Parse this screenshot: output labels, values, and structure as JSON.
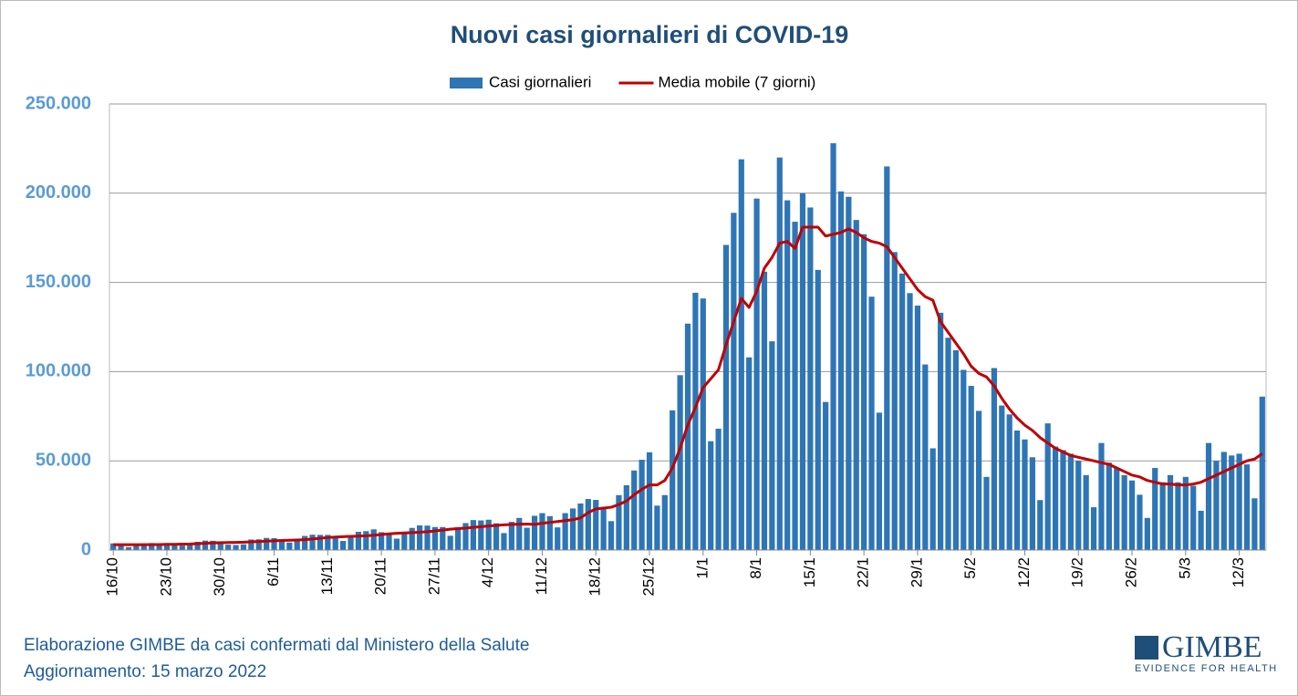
{
  "chart_data": {
    "type": "bar_line",
    "title": "Nuovi casi giornalieri di COVID-19",
    "categories": [
      "16/10",
      null,
      null,
      null,
      null,
      null,
      null,
      "23/10",
      null,
      null,
      null,
      null,
      null,
      null,
      "30/10",
      null,
      null,
      null,
      null,
      null,
      null,
      "6/11",
      null,
      null,
      null,
      null,
      null,
      null,
      "13/11",
      null,
      null,
      null,
      null,
      null,
      null,
      "20/11",
      null,
      null,
      null,
      null,
      null,
      null,
      "27/11",
      null,
      null,
      null,
      null,
      null,
      null,
      "4/12",
      null,
      null,
      null,
      null,
      null,
      null,
      "11/12",
      null,
      null,
      null,
      null,
      null,
      null,
      "18/12",
      null,
      null,
      null,
      null,
      null,
      null,
      "25/12",
      null,
      null,
      null,
      null,
      null,
      null,
      "1/1",
      null,
      null,
      null,
      null,
      null,
      null,
      "8/1",
      null,
      null,
      null,
      null,
      null,
      null,
      "15/1",
      null,
      null,
      null,
      null,
      null,
      null,
      "22/1",
      null,
      null,
      null,
      null,
      null,
      null,
      "29/1",
      null,
      null,
      null,
      null,
      null,
      null,
      "5/2",
      null,
      null,
      null,
      null,
      null,
      null,
      "12/2",
      null,
      null,
      null,
      null,
      null,
      null,
      "19/2",
      null,
      null,
      null,
      null,
      null,
      null,
      "26/2",
      null,
      null,
      null,
      null,
      null,
      null,
      "5/3",
      null,
      null,
      null,
      null,
      null,
      null,
      "12/3",
      null,
      null,
      null
    ],
    "series": [
      {
        "name": "Casi giornalieri",
        "type": "bar",
        "color": "#2e75b6",
        "values": [
          3700,
          3000,
          1600,
          2700,
          3700,
          3900,
          3800,
          3700,
          3200,
          2500,
          3000,
          4600,
          5300,
          5200,
          4900,
          3000,
          2800,
          3200,
          5900,
          6000,
          6800,
          6700,
          5800,
          4200,
          6400,
          7900,
          8600,
          8500,
          8500,
          7600,
          5100,
          7700,
          10200,
          10600,
          11600,
          10000,
          8500,
          6400,
          9700,
          12400,
          13800,
          13700,
          12900,
          12900,
          8000,
          12800,
          15100,
          16800,
          16600,
          17000,
          15000,
          9500,
          15800,
          18000,
          12500,
          19200,
          20700,
          19000,
          12700,
          20700,
          23300,
          26100,
          28600,
          28100,
          24200,
          16200,
          30800,
          36300,
          44600,
          50600,
          54800,
          24900,
          30800,
          78300,
          98000,
          126900,
          144200,
          141000,
          61000,
          68000,
          171000,
          189000,
          219000,
          108000,
          197000,
          156000,
          117000,
          220000,
          196000,
          184000,
          200000,
          192000,
          157000,
          83000,
          228000,
          201000,
          198000,
          185000,
          177000,
          142000,
          77000,
          215000,
          167000,
          155000,
          144000,
          137000,
          104000,
          57000,
          133000,
          119000,
          112000,
          101000,
          92000,
          78000,
          41000,
          102000,
          81000,
          76000,
          67000,
          62000,
          52000,
          28000,
          71000,
          58000,
          56000,
          54000,
          50000,
          42000,
          24000,
          60000,
          49000,
          46000,
          42000,
          39000,
          31000,
          18000,
          46000,
          38000,
          42000,
          38000,
          41000,
          36000,
          22000,
          60000,
          50000,
          55000,
          53000,
          54000,
          48000,
          29000,
          86000
        ]
      },
      {
        "name": "Media mobile (7 giorni)",
        "type": "line",
        "color": "#c00000",
        "values": [
          3000,
          3000,
          3000,
          3000,
          3000,
          3100,
          3100,
          3200,
          3200,
          3300,
          3400,
          3600,
          3800,
          4000,
          4100,
          4200,
          4300,
          4400,
          4600,
          4800,
          5000,
          5200,
          5400,
          5500,
          5600,
          5800,
          6200,
          6600,
          7000,
          7300,
          7500,
          7700,
          7800,
          8000,
          8300,
          8700,
          9100,
          9400,
          9600,
          9800,
          10000,
          10300,
          10700,
          11200,
          11700,
          12000,
          12300,
          12700,
          13100,
          13500,
          13800,
          14100,
          14300,
          14500,
          14600,
          14400,
          15000,
          15500,
          16000,
          16500,
          17000,
          18000,
          21000,
          23000,
          23500,
          24000,
          25500,
          27500,
          31000,
          34000,
          36500,
          36500,
          39000,
          46000,
          57000,
          70000,
          80000,
          91000,
          96000,
          101000,
          115000,
          128000,
          141000,
          136000,
          145000,
          158000,
          164000,
          172000,
          173000,
          169000,
          181000,
          181000,
          181000,
          176000,
          177000,
          178000,
          180000,
          178000,
          175000,
          173000,
          172000,
          170000,
          164000,
          158000,
          152000,
          146000,
          142000,
          140000,
          128000,
          122000,
          116000,
          110000,
          103000,
          99000,
          97000,
          92000,
          85000,
          79000,
          74000,
          70000,
          67000,
          63000,
          60000,
          57000,
          55000,
          53000,
          52000,
          51000,
          50000,
          49000,
          48000,
          46000,
          44000,
          42000,
          41000,
          39000,
          38000,
          37000,
          37000,
          36500,
          36500,
          37000,
          38000,
          40000,
          42000,
          44000,
          46000,
          48000,
          50000,
          51000,
          54000
        ]
      }
    ],
    "ylim": [
      0,
      250000
    ],
    "yticks": [
      0,
      {
        "value": 50000,
        "label": "50.000"
      },
      {
        "value": 100000,
        "label": "100.000"
      },
      {
        "value": 150000,
        "label": "150.000"
      },
      {
        "value": 200000,
        "label": "200.000"
      },
      {
        "value": 250000,
        "label": "250.000"
      }
    ],
    "grid": true,
    "legend": "top"
  },
  "footer": [
    "Elaborazione GIMBE da casi confermati dal Ministero della Salute",
    "Aggiornamento: 15 marzo 2022"
  ],
  "logo": {
    "name": "GIMBE",
    "tagline": "EVIDENCE FOR HEALTH"
  }
}
